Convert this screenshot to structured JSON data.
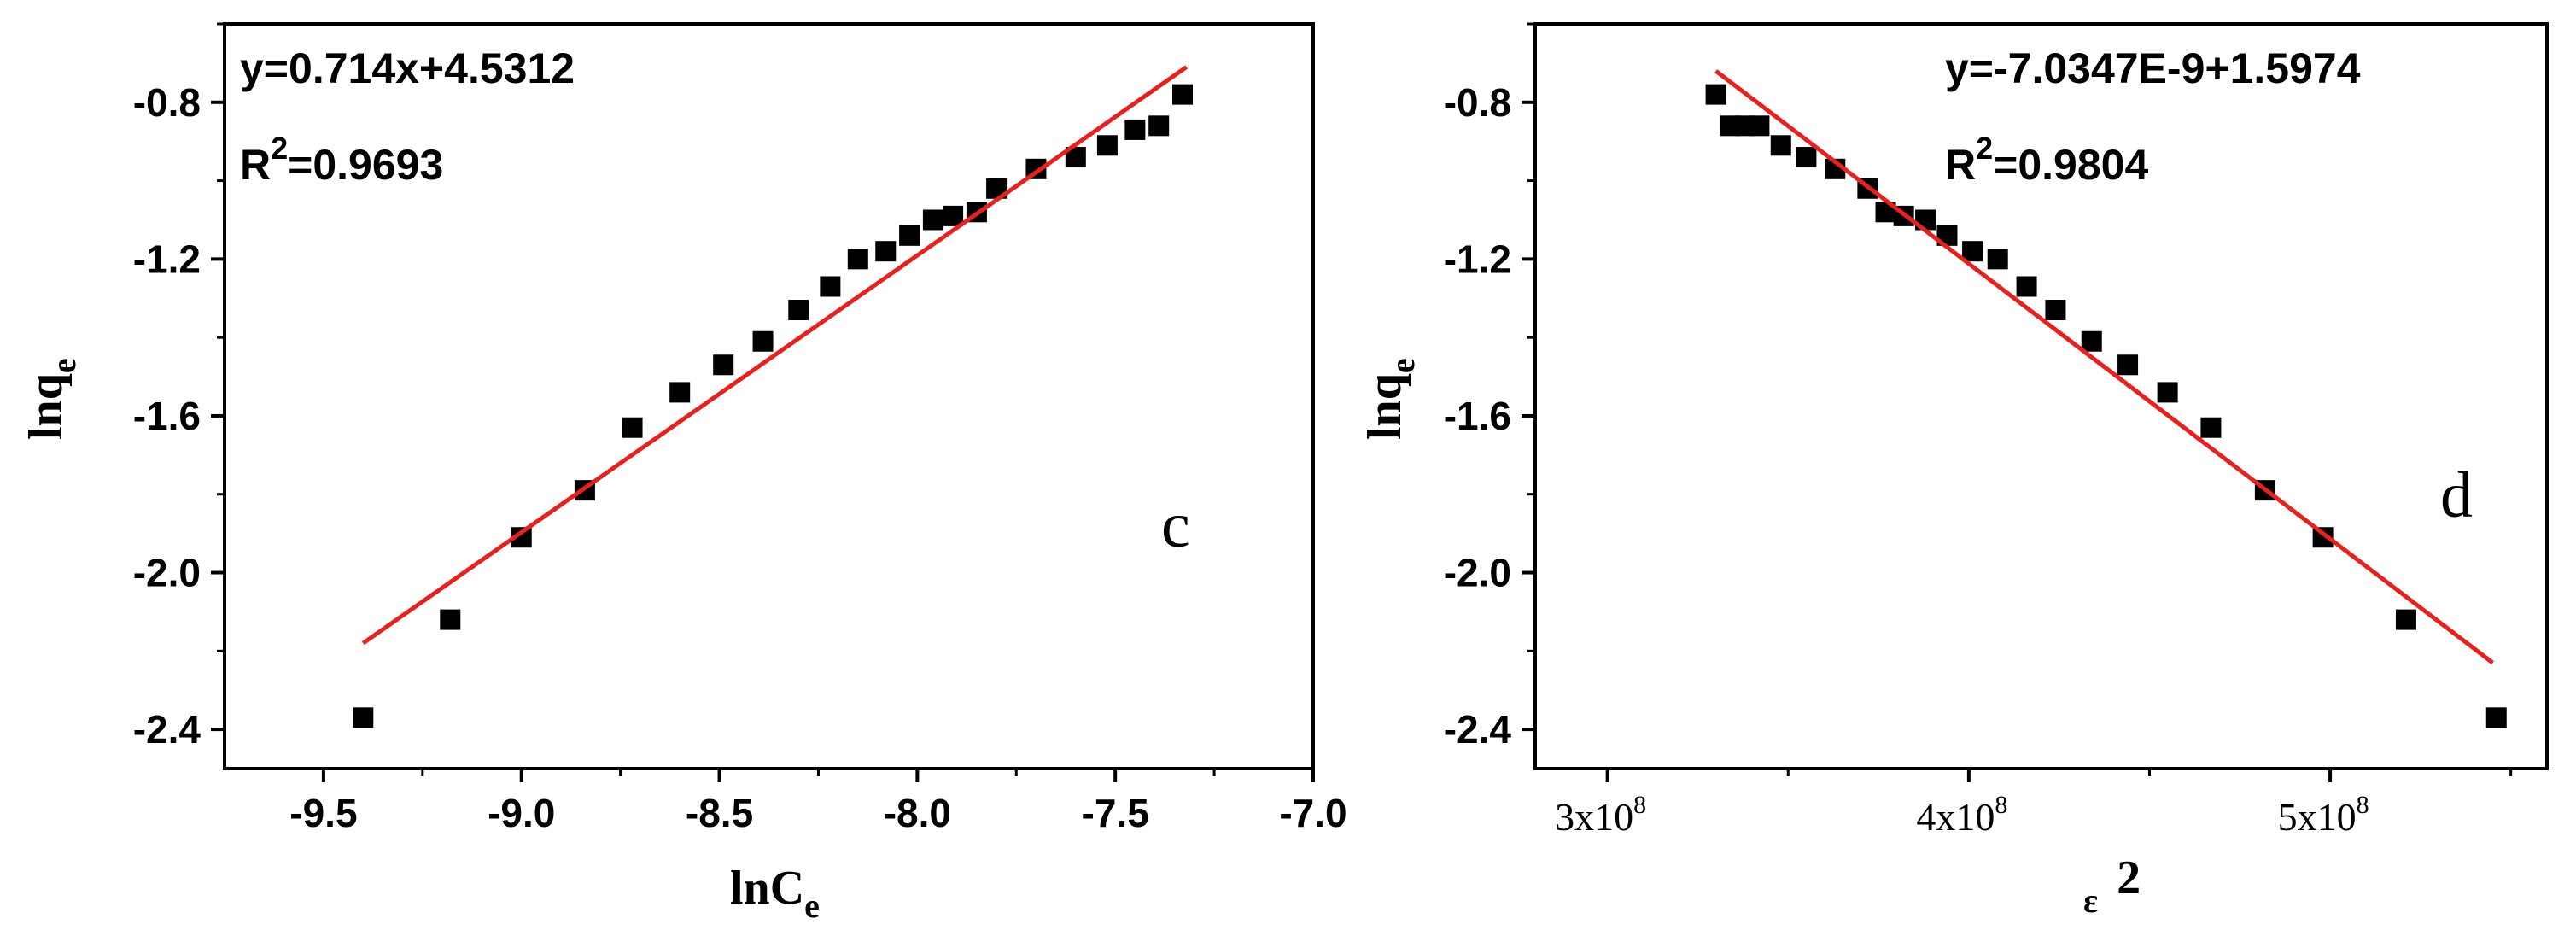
{
  "chart_data": [
    {
      "type": "scatter",
      "panel_label": "c",
      "equation": "y=0.714x+4.5312",
      "r2_prefix": "R",
      "r2_sup": "2",
      "r2_value": "=0.9693",
      "xlabel_main": "lnC",
      "xlabel_sub": "e",
      "ylabel_main": "lnq",
      "ylabel_sub": "e",
      "xlim": [
        -9.75,
        -7.0
      ],
      "ylim": [
        -2.5,
        -0.6
      ],
      "xticks": [
        -9.5,
        -9.0,
        -8.5,
        -8.0,
        -7.5,
        -7.0
      ],
      "xtick_labels": [
        "-9.5",
        "-9.0",
        "-8.5",
        "-8.0",
        "-7.5",
        "-7.0"
      ],
      "yticks": [
        -2.4,
        -2.0,
        -1.6,
        -1.2,
        -0.8
      ],
      "ytick_labels": [
        "-2.4",
        "-2.0",
        "-1.6",
        "-1.2",
        "-0.8"
      ],
      "fit_line": {
        "x": [
          -9.4,
          -7.32
        ],
        "y": [
          -2.18,
          -0.71
        ],
        "color": "#e8201e"
      },
      "marker_color": "#000000",
      "points": [
        {
          "x": -9.4,
          "y": -2.37
        },
        {
          "x": -9.18,
          "y": -2.12
        },
        {
          "x": -9.0,
          "y": -1.91
        },
        {
          "x": -8.84,
          "y": -1.79
        },
        {
          "x": -8.72,
          "y": -1.63
        },
        {
          "x": -8.6,
          "y": -1.54
        },
        {
          "x": -8.49,
          "y": -1.47
        },
        {
          "x": -8.39,
          "y": -1.41
        },
        {
          "x": -8.3,
          "y": -1.33
        },
        {
          "x": -8.22,
          "y": -1.27
        },
        {
          "x": -8.15,
          "y": -1.2
        },
        {
          "x": -8.08,
          "y": -1.18
        },
        {
          "x": -8.02,
          "y": -1.14
        },
        {
          "x": -7.96,
          "y": -1.1
        },
        {
          "x": -7.91,
          "y": -1.09
        },
        {
          "x": -7.85,
          "y": -1.08
        },
        {
          "x": -7.8,
          "y": -1.02
        },
        {
          "x": -7.7,
          "y": -0.97
        },
        {
          "x": -7.6,
          "y": -0.94
        },
        {
          "x": -7.52,
          "y": -0.91
        },
        {
          "x": -7.45,
          "y": -0.87
        },
        {
          "x": -7.39,
          "y": -0.86
        },
        {
          "x": -7.33,
          "y": -0.78
        }
      ]
    },
    {
      "type": "scatter",
      "panel_label": "d",
      "equation": "y=-7.0347E-9+1.5974",
      "r2_prefix": "R",
      "r2_sup": "2",
      "r2_value": "=0.9804",
      "xlabel_main": "ε",
      "xlabel_sup": "2",
      "ylabel_main": "lnq",
      "ylabel_sub": "e",
      "xlim": [
        280000000,
        560000000
      ],
      "ylim": [
        -2.5,
        -0.6
      ],
      "xticks": [
        300000000,
        400000000,
        500000000
      ],
      "xtick_labels": [
        {
          "base": "3x10",
          "exp": "8"
        },
        {
          "base": "4x10",
          "exp": "8"
        },
        {
          "base": "5x10",
          "exp": "8"
        }
      ],
      "yticks": [
        -2.4,
        -2.0,
        -1.6,
        -1.2,
        -0.8
      ],
      "ytick_labels": [
        "-2.4",
        "-2.0",
        "-1.6",
        "-1.2",
        "-0.8"
      ],
      "fit_line": {
        "x": [
          330000000,
          545000000
        ],
        "y": [
          -0.72,
          -2.23
        ],
        "color": "#e8201e"
      },
      "marker_color": "#000000",
      "points": [
        {
          "x": 330000000,
          "y": -0.78
        },
        {
          "x": 334000000,
          "y": -0.86
        },
        {
          "x": 338000000,
          "y": -0.86
        },
        {
          "x": 342000000,
          "y": -0.86
        },
        {
          "x": 348000000,
          "y": -0.91
        },
        {
          "x": 355000000,
          "y": -0.94
        },
        {
          "x": 363000000,
          "y": -0.97
        },
        {
          "x": 372000000,
          "y": -1.02
        },
        {
          "x": 377000000,
          "y": -1.08
        },
        {
          "x": 382000000,
          "y": -1.09
        },
        {
          "x": 388000000,
          "y": -1.1
        },
        {
          "x": 394000000,
          "y": -1.14
        },
        {
          "x": 401000000,
          "y": -1.18
        },
        {
          "x": 408000000,
          "y": -1.2
        },
        {
          "x": 416000000,
          "y": -1.27
        },
        {
          "x": 424000000,
          "y": -1.33
        },
        {
          "x": 434000000,
          "y": -1.41
        },
        {
          "x": 444000000,
          "y": -1.47
        },
        {
          "x": 455000000,
          "y": -1.54
        },
        {
          "x": 467000000,
          "y": -1.63
        },
        {
          "x": 482000000,
          "y": -1.79
        },
        {
          "x": 498000000,
          "y": -1.91
        },
        {
          "x": 521000000,
          "y": -2.12
        },
        {
          "x": 546000000,
          "y": -2.37
        }
      ]
    }
  ]
}
